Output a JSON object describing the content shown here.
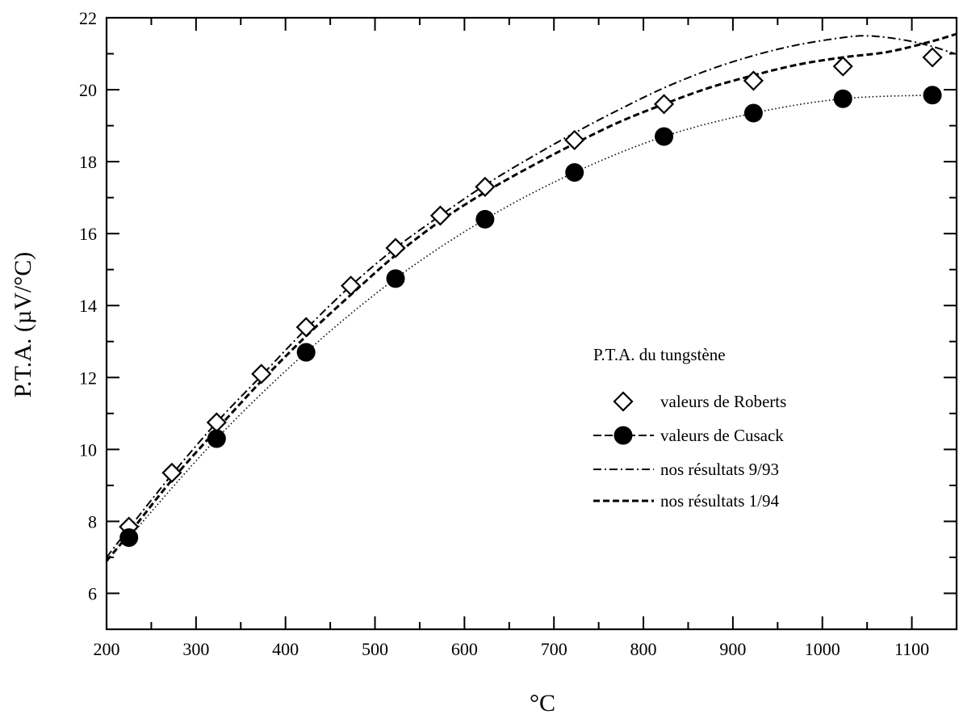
{
  "chart_data": {
    "type": "line",
    "xlabel": "°C",
    "ylabel": "P.T.A. (µV/°C)",
    "xlim": [
      200,
      1150
    ],
    "ylim": [
      5,
      22
    ],
    "xticks": [
      200,
      300,
      400,
      500,
      600,
      700,
      800,
      900,
      1000,
      1100
    ],
    "yticks": [
      6,
      8,
      10,
      12,
      14,
      16,
      18,
      20,
      22
    ],
    "legend_title": "P.T.A. du tungstène",
    "legend_position": "right",
    "grid": false,
    "series": [
      {
        "name": "valeurs de Roberts",
        "marker": "diamond-open",
        "line": "none",
        "x": [
          225,
          273,
          323,
          373,
          423,
          473,
          523,
          573,
          623,
          723,
          823,
          923,
          1023,
          1123
        ],
        "y": [
          7.85,
          9.35,
          10.75,
          12.1,
          13.4,
          14.55,
          15.6,
          16.5,
          17.3,
          18.6,
          19.6,
          20.25,
          20.65,
          20.9
        ]
      },
      {
        "name": "valeurs de Cusack",
        "marker": "circle-filled",
        "line": "dotted",
        "x": [
          225,
          323,
          423,
          523,
          623,
          723,
          823,
          923,
          1023,
          1123
        ],
        "y": [
          7.55,
          10.3,
          12.7,
          14.75,
          16.4,
          17.7,
          18.7,
          19.35,
          19.75,
          19.85
        ]
      },
      {
        "name": "nos résultats 9/93",
        "marker": "none",
        "line": "dash-dot",
        "x": [
          200,
          225,
          273,
          323,
          373,
          423,
          473,
          523,
          573,
          623,
          673,
          723,
          773,
          823,
          873,
          923,
          973,
          1023,
          1048,
          1073,
          1098,
          1123,
          1148
        ],
        "y": [
          7.0,
          7.8,
          9.3,
          10.75,
          12.05,
          13.35,
          14.55,
          15.6,
          16.5,
          17.35,
          18.1,
          18.8,
          19.45,
          20.05,
          20.55,
          20.95,
          21.25,
          21.45,
          21.5,
          21.45,
          21.35,
          21.2,
          21.0
        ]
      },
      {
        "name": "nos résultats 1/94",
        "marker": "none",
        "line": "dashed",
        "x": [
          200,
          225,
          273,
          323,
          373,
          423,
          473,
          523,
          573,
          623,
          673,
          723,
          773,
          823,
          873,
          923,
          973,
          1023,
          1073,
          1123,
          1150
        ],
        "y": [
          6.9,
          7.65,
          9.15,
          10.55,
          11.9,
          13.15,
          14.3,
          15.4,
          16.35,
          17.15,
          17.85,
          18.5,
          19.1,
          19.6,
          20.05,
          20.4,
          20.7,
          20.9,
          21.05,
          21.35,
          21.55
        ]
      }
    ]
  }
}
